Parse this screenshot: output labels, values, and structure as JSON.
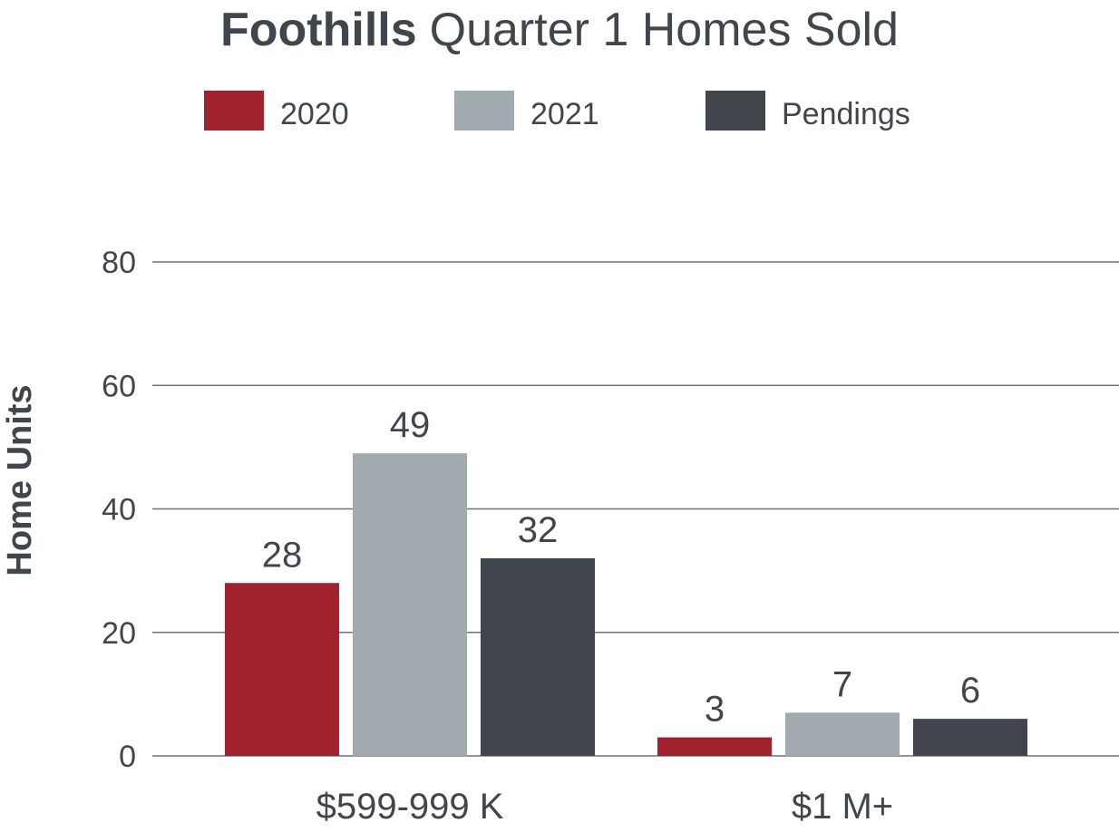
{
  "chart_data": {
    "type": "bar",
    "title_bold": "Foothills",
    "title_rest": "Quarter 1 Homes Sold",
    "ylabel": "Home Units",
    "xlabel": "",
    "ylim": [
      0,
      80
    ],
    "yticks": [
      0,
      20,
      40,
      60,
      80
    ],
    "grid": true,
    "legend_position": "top",
    "categories": [
      "$599-999 K",
      "$1 M+"
    ],
    "series": [
      {
        "name": "2020",
        "values": [
          28,
          3
        ],
        "labels": [
          "28",
          "3"
        ],
        "color": "#a0222f"
      },
      {
        "name": "2021",
        "values": [
          49,
          7
        ],
        "labels": [
          "49",
          "7"
        ],
        "color": "#a1aaaf"
      },
      {
        "name": "Pendings",
        "values": [
          32,
          6
        ],
        "labels": [
          "32",
          "6"
        ],
        "color": "#40464c"
      }
    ],
    "colors": {
      "text": "#40464c",
      "grid": "#6d7275"
    }
  }
}
